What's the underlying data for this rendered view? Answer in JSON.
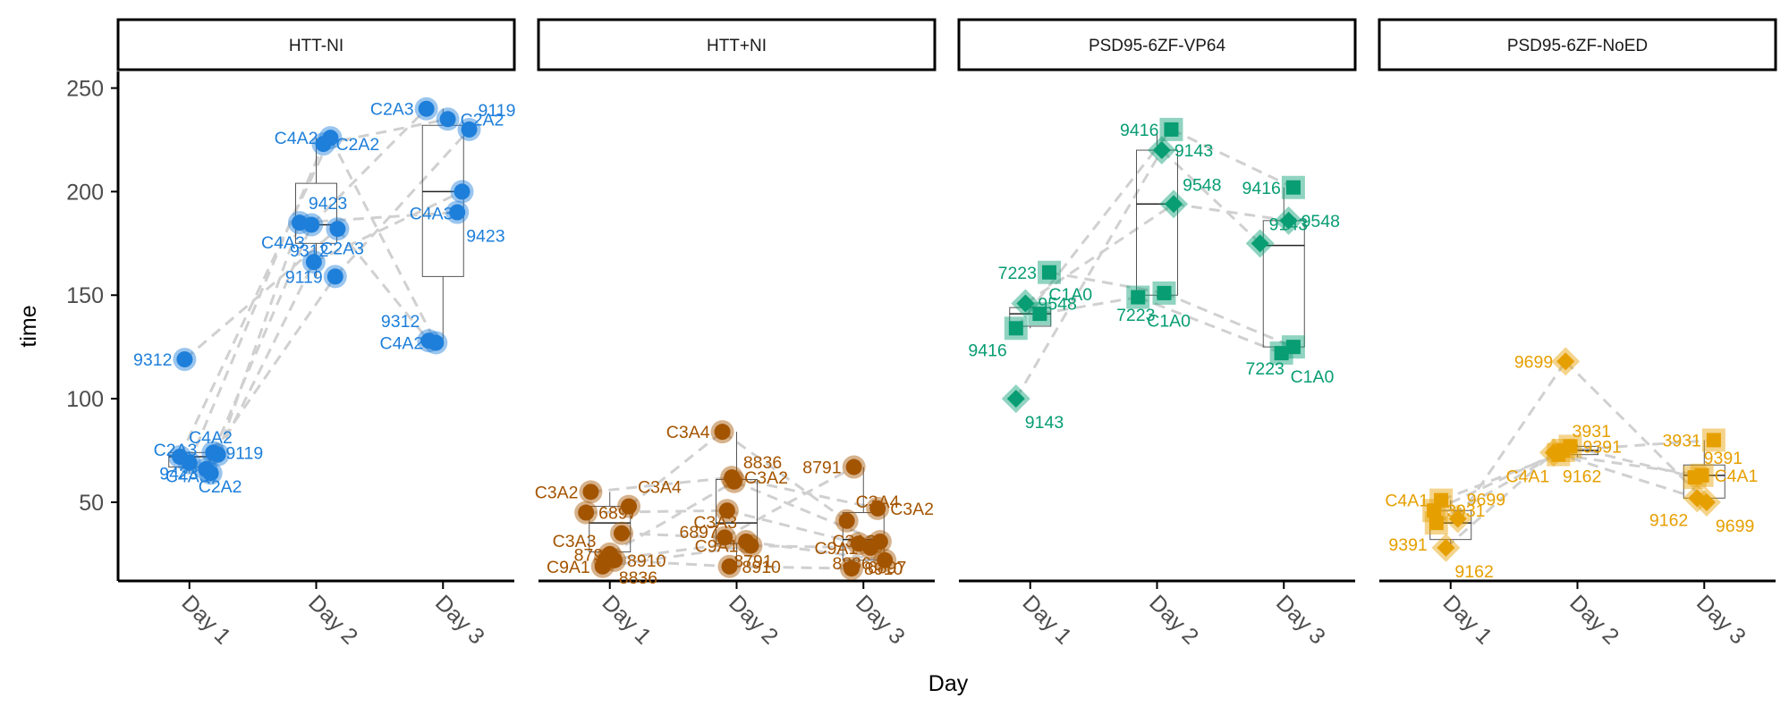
{
  "chart_data": {
    "type": "scatter",
    "xlabel": "Day",
    "ylabel": "time",
    "ylim": [
      12,
      258
    ],
    "yticks": [
      50,
      100,
      150,
      200,
      250
    ],
    "x_categories": [
      "Day 1",
      "Day 2",
      "Day 3"
    ],
    "panels": [
      {
        "title": "HTT-NI",
        "color": "#1E7FDA",
        "shape": "circle",
        "boxes": [
          {
            "day": "Day 1",
            "q1": 67,
            "median": 72,
            "q3": 74,
            "lo": 64,
            "hi": 74
          },
          {
            "day": "Day 2",
            "q1": 175,
            "median": 184,
            "q3": 204,
            "lo": 159,
            "hi": 226
          },
          {
            "day": "Day 3",
            "q1": 159,
            "median": 200,
            "q3": 232,
            "lo": 127,
            "hi": 240
          }
        ],
        "points": [
          {
            "id": "9312",
            "day": "Day 1",
            "y": 119,
            "jx": -0.02
          },
          {
            "id": "9119",
            "day": "Day 1",
            "y": 74,
            "jx": 0.1
          },
          {
            "id": "C4A2",
            "day": "Day 1",
            "y": 72,
            "jx": -0.04
          },
          {
            "id": "C4A3",
            "day": "Day 1",
            "y": 73,
            "jx": 0.12
          },
          {
            "id": "C2A2",
            "day": "Day 1",
            "y": 69,
            "jx": 0.0
          },
          {
            "id": "C2A3",
            "day": "Day 1",
            "y": 66,
            "jx": 0.07
          },
          {
            "id": "9423",
            "day": "Day 1",
            "y": 64,
            "jx": 0.09
          },
          {
            "id": "C4A2",
            "day": "Day 2",
            "y": 226,
            "jx": 0.06
          },
          {
            "id": "C2A2",
            "day": "Day 2",
            "y": 223,
            "jx": 0.03
          },
          {
            "id": "9423",
            "day": "Day 2",
            "y": 185,
            "jx": -0.07
          },
          {
            "id": "9312",
            "day": "Day 2",
            "y": 182,
            "jx": 0.09
          },
          {
            "id": "C2A3",
            "day": "Day 2",
            "y": 184,
            "jx": -0.02
          },
          {
            "id": "C4A3",
            "day": "Day 2",
            "y": 166,
            "jx": -0.01
          },
          {
            "id": "9119",
            "day": "Day 2",
            "y": 159,
            "jx": 0.08
          },
          {
            "id": "C2A3",
            "day": "Day 3",
            "y": 240,
            "jx": -0.07
          },
          {
            "id": "C2A2",
            "day": "Day 3",
            "y": 235,
            "jx": 0.02
          },
          {
            "id": "9119",
            "day": "Day 3",
            "y": 230,
            "jx": 0.11
          },
          {
            "id": "C4A3",
            "day": "Day 3",
            "y": 200,
            "jx": 0.08
          },
          {
            "id": "9423",
            "day": "Day 3",
            "y": 190,
            "jx": 0.06
          },
          {
            "id": "9312",
            "day": "Day 3",
            "y": 128,
            "jx": -0.06
          },
          {
            "id": "C4A2",
            "day": "Day 3",
            "y": 127,
            "jx": -0.03
          }
        ]
      },
      {
        "title": "HTT+NI",
        "color": "#A35400",
        "shape": "circle",
        "boxes": [
          {
            "day": "Day 1",
            "q1": 26,
            "median": 40,
            "q3": 48,
            "lo": 18,
            "hi": 55
          },
          {
            "day": "Day 2",
            "q1": 30,
            "median": 40,
            "q3": 61,
            "lo": 18,
            "hi": 84
          },
          {
            "day": "Day 3",
            "q1": 22,
            "median": 32,
            "q3": 45,
            "lo": 18,
            "hi": 67
          }
        ],
        "points": [
          {
            "id": "C3A2",
            "day": "Day 1",
            "y": 55,
            "jx": -0.08
          },
          {
            "id": "6897",
            "day": "Day 1",
            "y": 45,
            "jx": -0.1
          },
          {
            "id": "C3A4",
            "day": "Day 1",
            "y": 48,
            "jx": 0.08
          },
          {
            "id": "8791",
            "day": "Day 1",
            "y": 35,
            "jx": 0.05
          },
          {
            "id": "8836",
            "day": "Day 1",
            "y": 25,
            "jx": 0.0
          },
          {
            "id": "C3A3",
            "day": "Day 1",
            "y": 22,
            "jx": -0.02
          },
          {
            "id": "C9A1",
            "day": "Day 1",
            "y": 19,
            "jx": -0.03
          },
          {
            "id": "8910",
            "day": "Day 1",
            "y": 22,
            "jx": 0.02
          },
          {
            "id": "C3A4",
            "day": "Day 2",
            "y": 84,
            "jx": -0.06
          },
          {
            "id": "C3A2",
            "day": "Day 2",
            "y": 62,
            "jx": -0.02
          },
          {
            "id": "8836",
            "day": "Day 2",
            "y": 60,
            "jx": -0.01
          },
          {
            "id": "6897",
            "day": "Day 2",
            "y": 46,
            "jx": -0.04
          },
          {
            "id": "8791",
            "day": "Day 2",
            "y": 33,
            "jx": -0.05
          },
          {
            "id": "C3A3",
            "day": "Day 2",
            "y": 31,
            "jx": 0.04
          },
          {
            "id": "C9A1",
            "day": "Day 2",
            "y": 29,
            "jx": 0.06
          },
          {
            "id": "8910",
            "day": "Day 2",
            "y": 19,
            "jx": -0.03
          },
          {
            "id": "8791",
            "day": "Day 3",
            "y": 67,
            "jx": -0.04
          },
          {
            "id": "C3A2",
            "day": "Day 3",
            "y": 47,
            "jx": 0.06
          },
          {
            "id": "C3A4",
            "day": "Day 3",
            "y": 41,
            "jx": -0.07
          },
          {
            "id": "8836",
            "day": "Day 3",
            "y": 31,
            "jx": 0.07
          },
          {
            "id": "6897",
            "day": "Day 3",
            "y": 30,
            "jx": -0.02
          },
          {
            "id": "C3A3",
            "day": "Day 3",
            "y": 22,
            "jx": 0.09
          },
          {
            "id": "C9A1",
            "day": "Day 3",
            "y": 28,
            "jx": 0.03
          },
          {
            "id": "8910",
            "day": "Day 3",
            "y": 18,
            "jx": -0.05
          }
        ]
      },
      {
        "title": "PSD95-6ZF-VP64",
        "color": "#089D73",
        "shapes": {
          "square": [
            "7223",
            "C1A0",
            "9416"
          ],
          "diamond": [
            "9143",
            "9548"
          ]
        },
        "boxes": [
          {
            "day": "Day 1",
            "q1": 135,
            "median": 141,
            "q3": 144,
            "lo": 134,
            "hi": 146
          },
          {
            "day": "Day 2",
            "q1": 150,
            "median": 194,
            "q3": 220,
            "lo": 149,
            "hi": 230
          },
          {
            "day": "Day 3",
            "q1": 125,
            "median": 174,
            "q3": 186,
            "lo": 122,
            "hi": 202
          }
        ],
        "points": [
          {
            "id": "7223",
            "day": "Day 1",
            "y": 161,
            "jx": 0.08,
            "shape": "square"
          },
          {
            "id": "9548",
            "day": "Day 1",
            "y": 146,
            "jx": -0.02,
            "shape": "diamond"
          },
          {
            "id": "C1A0",
            "day": "Day 1",
            "y": 141,
            "jx": 0.04,
            "shape": "square"
          },
          {
            "id": "9416",
            "day": "Day 1",
            "y": 134,
            "jx": -0.06,
            "shape": "square"
          },
          {
            "id": "9143",
            "day": "Day 1",
            "y": 100,
            "jx": -0.06,
            "shape": "diamond"
          },
          {
            "id": "9416",
            "day": "Day 2",
            "y": 230,
            "jx": 0.06,
            "shape": "square"
          },
          {
            "id": "9143",
            "day": "Day 2",
            "y": 220,
            "jx": 0.02,
            "shape": "diamond"
          },
          {
            "id": "9548",
            "day": "Day 2",
            "y": 194,
            "jx": 0.07,
            "shape": "diamond"
          },
          {
            "id": "7223",
            "day": "Day 2",
            "y": 151,
            "jx": 0.03,
            "shape": "square"
          },
          {
            "id": "C1A0",
            "day": "Day 2",
            "y": 149,
            "jx": -0.08,
            "shape": "square"
          },
          {
            "id": "9416",
            "day": "Day 3",
            "y": 202,
            "jx": 0.04,
            "shape": "square"
          },
          {
            "id": "9548",
            "day": "Day 3",
            "y": 186,
            "jx": 0.02,
            "shape": "diamond"
          },
          {
            "id": "9143",
            "day": "Day 3",
            "y": 175,
            "jx": -0.1,
            "shape": "diamond"
          },
          {
            "id": "7223",
            "day": "Day 3",
            "y": 125,
            "jx": 0.04,
            "shape": "square"
          },
          {
            "id": "C1A0",
            "day": "Day 3",
            "y": 122,
            "jx": -0.01,
            "shape": "square"
          }
        ]
      },
      {
        "title": "PSD95-6ZF-NoED",
        "color": "#E69F00",
        "shapes": {
          "square": [
            "C4A1",
            "3931",
            "9391"
          ],
          "diamond": [
            "9699",
            "9162"
          ]
        },
        "boxes": [
          {
            "day": "Day 1",
            "q1": 32,
            "median": 40,
            "q3": 46,
            "lo": 27,
            "hi": 51
          },
          {
            "day": "Day 2",
            "q1": 73,
            "median": 75,
            "q3": 77,
            "lo": 72,
            "hi": 78
          },
          {
            "day": "Day 3",
            "q1": 52,
            "median": 63,
            "q3": 68,
            "lo": 50,
            "hi": 80
          }
        ],
        "points": [
          {
            "id": "C4A1",
            "day": "Day 1",
            "y": 51,
            "jx": -0.04,
            "shape": "square"
          },
          {
            "id": "3931",
            "day": "Day 1",
            "y": 46,
            "jx": -0.07,
            "shape": "square"
          },
          {
            "id": "9699",
            "day": "Day 1",
            "y": 42,
            "jx": 0.03,
            "shape": "diamond"
          },
          {
            "id": "9391",
            "day": "Day 1",
            "y": 40,
            "jx": -0.06,
            "shape": "square"
          },
          {
            "id": "9162",
            "day": "Day 1",
            "y": 28,
            "jx": -0.02,
            "shape": "diamond"
          },
          {
            "id": "9699",
            "day": "Day 2",
            "y": 118,
            "jx": -0.05,
            "shape": "diamond"
          },
          {
            "id": "9391",
            "day": "Day 2",
            "y": 77,
            "jx": -0.03,
            "shape": "square"
          },
          {
            "id": "3931",
            "day": "Day 2",
            "y": 75,
            "jx": -0.06,
            "shape": "square"
          },
          {
            "id": "C4A1",
            "day": "Day 2",
            "y": 73,
            "jx": -0.08,
            "shape": "square"
          },
          {
            "id": "9162",
            "day": "Day 2",
            "y": 74,
            "jx": -0.1,
            "shape": "diamond"
          },
          {
            "id": "3931",
            "day": "Day 3",
            "y": 80,
            "jx": 0.04,
            "shape": "square"
          },
          {
            "id": "C4A1",
            "day": "Day 3",
            "y": 63,
            "jx": -0.01,
            "shape": "square"
          },
          {
            "id": "9391",
            "day": "Day 3",
            "y": 62,
            "jx": -0.04,
            "shape": "square"
          },
          {
            "id": "9162",
            "day": "Day 3",
            "y": 52,
            "jx": -0.03,
            "shape": "diamond"
          },
          {
            "id": "9699",
            "day": "Day 3",
            "y": 50,
            "jx": 0.01,
            "shape": "diamond"
          }
        ]
      }
    ]
  }
}
